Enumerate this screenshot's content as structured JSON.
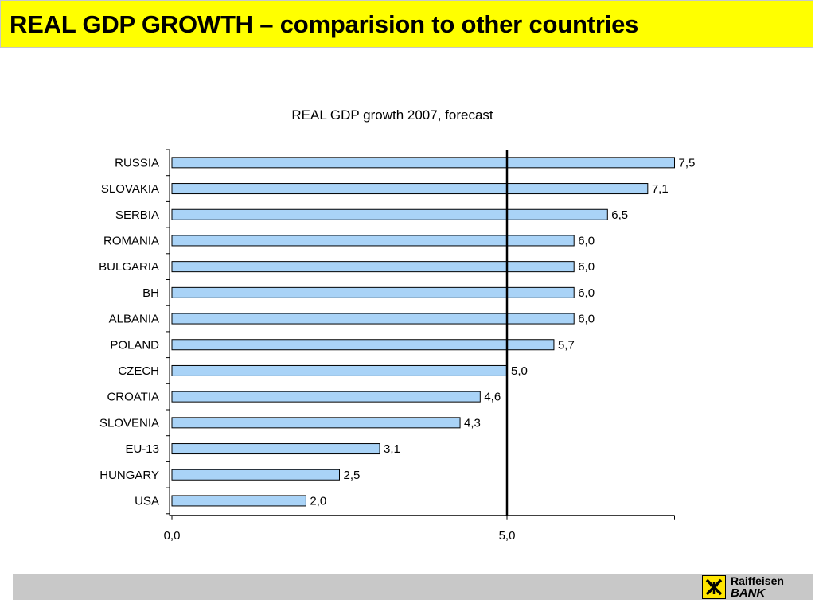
{
  "page": {
    "title": "REAL GDP GROWTH – comparision to other countries",
    "logo": {
      "line1": "Raiffeisen",
      "line2": "BANK"
    }
  },
  "colors": {
    "title_bar": "#ffff00",
    "bar_fill": "#a9d3f7",
    "bar_stroke": "#000000",
    "footer_bar": "#c8c8c8",
    "logo_yellow": "#ffe500"
  },
  "chart_data": {
    "type": "bar",
    "orientation": "horizontal",
    "title": "REAL GDP growth 2007, forecast",
    "categories": [
      "RUSSIA",
      "SLOVAKIA",
      "SERBIA",
      "ROMANIA",
      "BULGARIA",
      "BH",
      "ALBANIA",
      "POLAND",
      "CZECH",
      "CROATIA",
      "SLOVENIA",
      "EU-13",
      "HUNGARY",
      "USA"
    ],
    "values": [
      7.5,
      7.1,
      6.5,
      6.0,
      6.0,
      6.0,
      6.0,
      5.7,
      5.0,
      4.6,
      4.3,
      3.1,
      2.5,
      2.0
    ],
    "value_labels": [
      "7,5",
      "7,1",
      "6,5",
      "6,0",
      "6,0",
      "6,0",
      "6,0",
      "5,7",
      "5,0",
      "4,6",
      "4,3",
      "3,1",
      "2,5",
      "2,0"
    ],
    "x_ticks": [
      0,
      5
    ],
    "x_tick_labels": [
      "0,0",
      "5,0"
    ],
    "xlim": [
      0,
      7.5
    ],
    "reference_line": 5.0,
    "grid": false,
    "legend": "none"
  }
}
